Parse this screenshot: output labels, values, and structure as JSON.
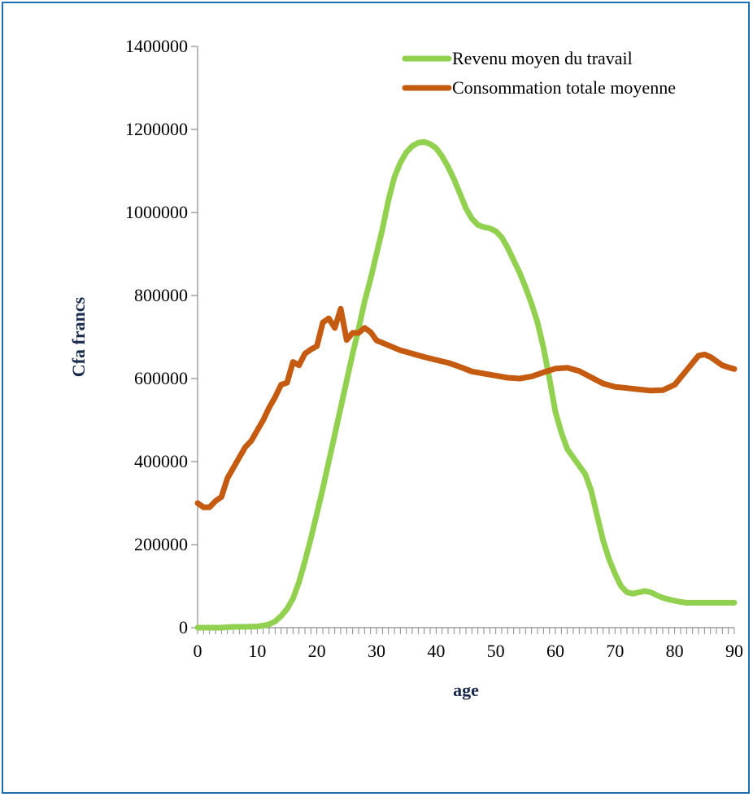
{
  "chart_data": {
    "type": "line",
    "xlabel": "age",
    "ylabel": "Cfa francs",
    "xlim": [
      0,
      90
    ],
    "ylim": [
      0,
      1400000
    ],
    "x_ticks": [
      0,
      10,
      20,
      30,
      40,
      50,
      60,
      70,
      80,
      90
    ],
    "y_ticks": [
      0,
      200000,
      400000,
      600000,
      800000,
      1000000,
      1200000,
      1400000
    ],
    "legend_position": "top-right",
    "grid": false,
    "series": [
      {
        "name": "Revenu moyen du travail",
        "color": "#92d050",
        "x": [
          0,
          2,
          4,
          6,
          8,
          10,
          11,
          12,
          13,
          14,
          15,
          16,
          17,
          18,
          19,
          20,
          21,
          22,
          23,
          24,
          25,
          26,
          27,
          28,
          29,
          30,
          31,
          32,
          33,
          34,
          35,
          36,
          37,
          38,
          39,
          40,
          41,
          42,
          43,
          44,
          45,
          46,
          47,
          48,
          49,
          50,
          51,
          52,
          53,
          54,
          55,
          56,
          57,
          58,
          59,
          60,
          61,
          62,
          63,
          64,
          65,
          66,
          67,
          68,
          69,
          70,
          71,
          72,
          73,
          74,
          75,
          76,
          77,
          78,
          79,
          80,
          81,
          82,
          83,
          84,
          85,
          86,
          87,
          88,
          89,
          90
        ],
        "y": [
          0,
          0,
          0,
          2000,
          2000,
          3000,
          5000,
          8000,
          15000,
          28000,
          45000,
          70000,
          110000,
          160000,
          215000,
          275000,
          335000,
          400000,
          465000,
          530000,
          595000,
          660000,
          720000,
          785000,
          840000,
          900000,
          960000,
          1030000,
          1085000,
          1120000,
          1145000,
          1160000,
          1168000,
          1170000,
          1165000,
          1155000,
          1135000,
          1110000,
          1080000,
          1045000,
          1010000,
          985000,
          970000,
          965000,
          962000,
          955000,
          940000,
          915000,
          885000,
          855000,
          820000,
          780000,
          735000,
          675000,
          600000,
          520000,
          470000,
          430000,
          410000,
          390000,
          370000,
          330000,
          270000,
          210000,
          165000,
          130000,
          100000,
          85000,
          82000,
          85000,
          88000,
          85000,
          78000,
          72000,
          68000,
          65000,
          62000,
          60000,
          60000,
          60000,
          60000,
          60000,
          60000,
          60000,
          60000,
          60000
        ]
      },
      {
        "name": "Consommation totale moyenne",
        "color": "#c55a11",
        "x": [
          0,
          1,
          2,
          3,
          4,
          5,
          6,
          7,
          8,
          9,
          10,
          11,
          12,
          13,
          14,
          15,
          16,
          17,
          18,
          19,
          20,
          21,
          22,
          23,
          24,
          25,
          26,
          27,
          28,
          29,
          30,
          32,
          34,
          36,
          38,
          40,
          42,
          44,
          46,
          48,
          50,
          52,
          54,
          56,
          58,
          60,
          62,
          64,
          66,
          68,
          70,
          72,
          74,
          76,
          78,
          80,
          82,
          84,
          85,
          86,
          87,
          88,
          89,
          90
        ],
        "y": [
          300000,
          290000,
          290000,
          305000,
          315000,
          360000,
          385000,
          410000,
          435000,
          450000,
          475000,
          500000,
          530000,
          555000,
          585000,
          590000,
          640000,
          632000,
          660000,
          670000,
          678000,
          735000,
          745000,
          722000,
          768000,
          693000,
          710000,
          710000,
          722000,
          712000,
          692000,
          680000,
          668000,
          660000,
          652000,
          645000,
          638000,
          628000,
          617000,
          612000,
          607000,
          602000,
          600000,
          605000,
          615000,
          624000,
          626000,
          618000,
          603000,
          588000,
          580000,
          577000,
          574000,
          571000,
          572000,
          585000,
          620000,
          655000,
          658000,
          652000,
          642000,
          632000,
          627000,
          623000
        ]
      }
    ]
  }
}
